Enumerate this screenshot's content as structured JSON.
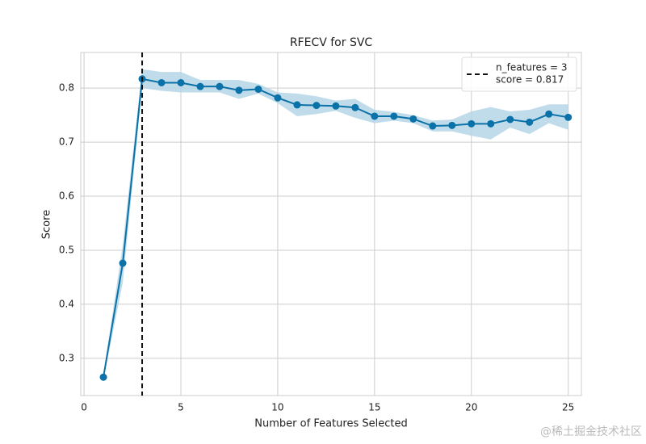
{
  "chart_data": {
    "type": "line",
    "title": "RFECV for SVC",
    "x_label": "Number of Features Selected",
    "y_label": "Score",
    "x": [
      1,
      2,
      3,
      4,
      5,
      6,
      7,
      8,
      9,
      10,
      11,
      12,
      13,
      14,
      15,
      16,
      17,
      18,
      19,
      20,
      21,
      22,
      23,
      24,
      25
    ],
    "series": [
      {
        "color": "#0a72a8",
        "values": [
          0.265,
          0.476,
          0.817,
          0.81,
          0.81,
          0.803,
          0.803,
          0.796,
          0.798,
          0.782,
          0.769,
          0.768,
          0.767,
          0.764,
          0.748,
          0.748,
          0.743,
          0.73,
          0.731,
          0.734,
          0.734,
          0.742,
          0.737,
          0.752,
          0.746
        ],
        "lower": [
          0.26,
          0.44,
          0.8,
          0.795,
          0.792,
          0.792,
          0.792,
          0.78,
          0.79,
          0.772,
          0.748,
          0.752,
          0.758,
          0.745,
          0.735,
          0.74,
          0.735,
          0.72,
          0.72,
          0.712,
          0.705,
          0.727,
          0.715,
          0.735,
          0.723
        ],
        "upper": [
          0.27,
          0.51,
          0.835,
          0.83,
          0.83,
          0.815,
          0.815,
          0.815,
          0.808,
          0.792,
          0.79,
          0.785,
          0.777,
          0.78,
          0.76,
          0.756,
          0.75,
          0.74,
          0.742,
          0.757,
          0.765,
          0.757,
          0.76,
          0.77,
          0.77
        ],
        "band_color": "#b5d6e6"
      }
    ],
    "vline": {
      "x": 3,
      "color": "#111111",
      "legend": [
        "n_features = 3",
        "score = 0.817"
      ]
    },
    "legend_position": "upper right",
    "xlim": [
      -0.17,
      25.68
    ],
    "xticks": [
      0,
      5,
      10,
      15,
      20,
      25
    ],
    "ylim": [
      0.231,
      0.866
    ],
    "yticks": [
      0.3,
      0.4,
      0.5,
      0.6,
      0.7,
      0.8
    ],
    "grid": true,
    "watermark": "@稀土掘金技术社区"
  }
}
